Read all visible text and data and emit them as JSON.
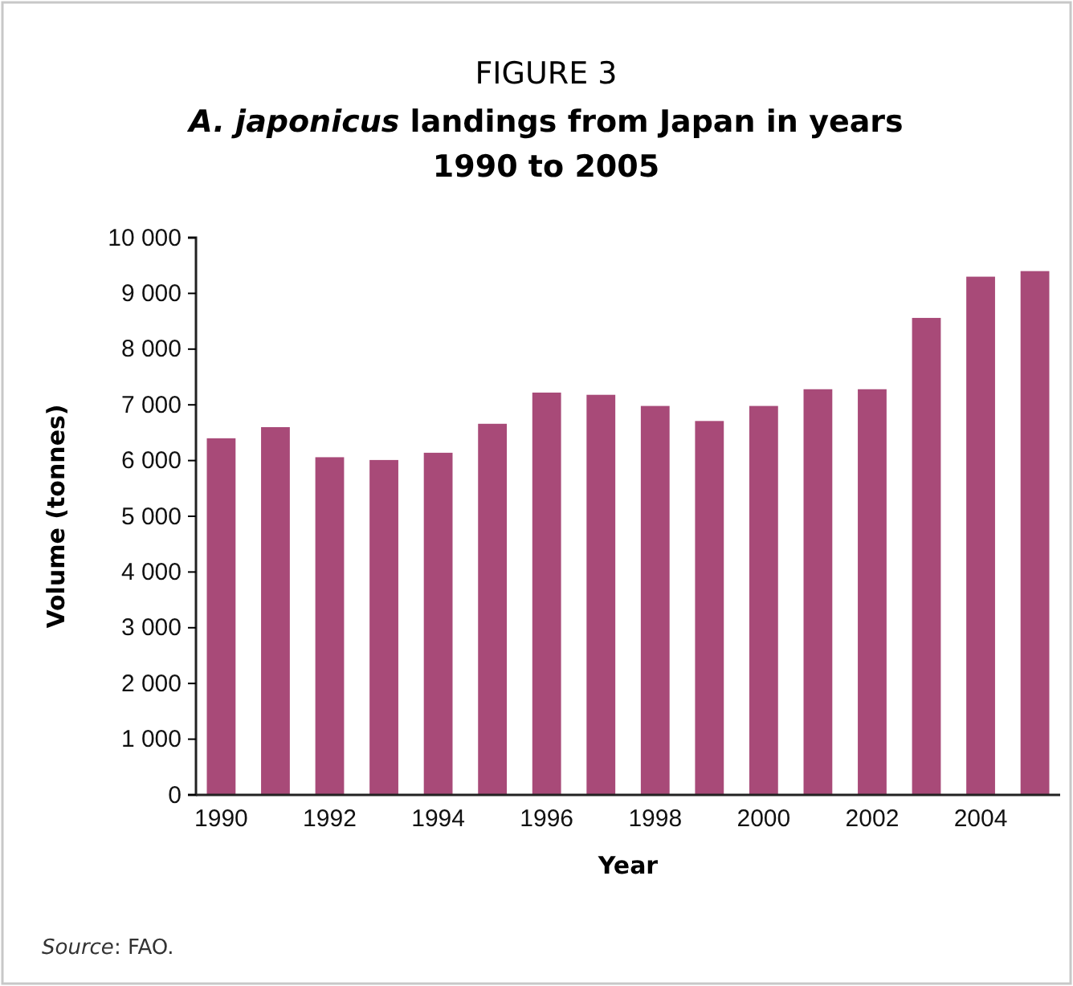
{
  "chart_data": {
    "type": "bar",
    "title": "FIGURE 3",
    "subtitle": "A. japonicus landings from Japan in years 1990 to 2005",
    "xlabel": "Year",
    "ylabel": "Volume (tonnes)",
    "categories": [
      "1990",
      null,
      "1992",
      null,
      "1994",
      null,
      "1996",
      null,
      "1998",
      null,
      "2000",
      null,
      "2002",
      null,
      "2004",
      null
    ],
    "values": [
      6400,
      6600,
      6060,
      6010,
      6140,
      6660,
      7220,
      7180,
      6980,
      6710,
      6980,
      7280,
      7280,
      8560,
      9300,
      9400
    ],
    "color": "#a84a78",
    "ylim": [
      0,
      10000
    ],
    "yticks": [
      0,
      {
        "value": 1000,
        "label": "1 000"
      },
      {
        "value": 2000,
        "label": "2 000"
      },
      {
        "value": 3000,
        "label": "3 000"
      },
      {
        "value": 4000,
        "label": "4 000"
      },
      {
        "value": 5000,
        "label": "5 000"
      },
      {
        "value": 6000,
        "label": "6 000"
      },
      {
        "value": 7000,
        "label": "7 000"
      },
      {
        "value": 8000,
        "label": "8 000"
      },
      {
        "value": 9000,
        "label": "9 000"
      },
      {
        "value": 10000,
        "label": "10 000"
      }
    ],
    "grid": false,
    "annotations": [
      "Source: FAO."
    ]
  }
}
